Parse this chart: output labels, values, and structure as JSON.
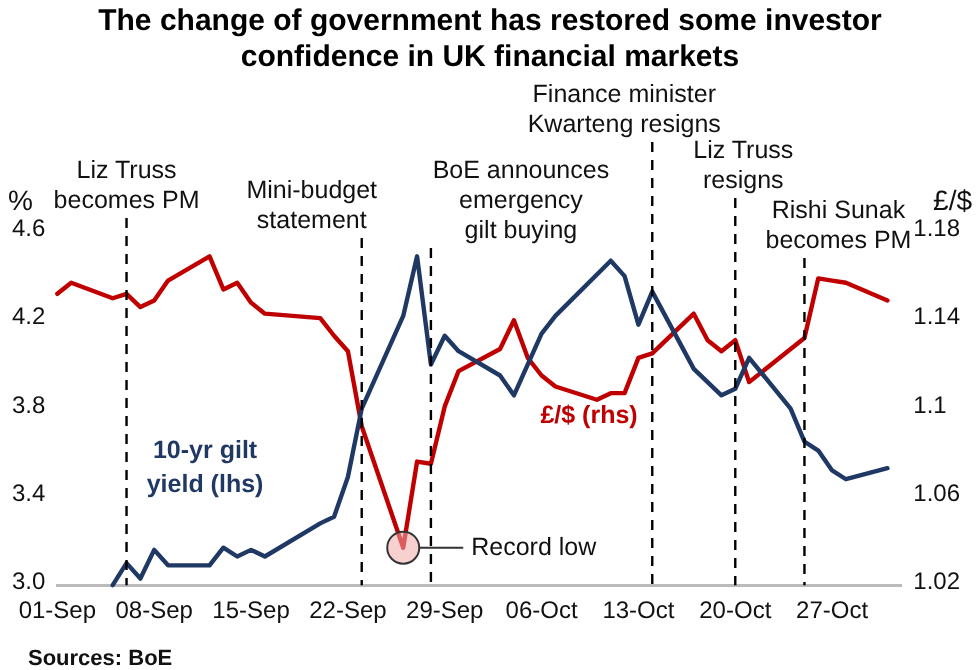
{
  "chart_data": {
    "type": "line",
    "title": "The change of government has restored some investor confidence in UK financial markets",
    "ylabel": "%",
    "y2label": "£/$",
    "xlim": [
      "--09-01",
      "--11-01"
    ],
    "xticks": [
      {
        "value": "--09-01",
        "label": "01-Sep"
      },
      {
        "value": "--09-08",
        "label": "08-Sep"
      },
      {
        "value": "--09-15",
        "label": "15-Sep"
      },
      {
        "value": "--09-22",
        "label": "22-Sep"
      },
      {
        "value": "--09-29",
        "label": "29-Sep"
      },
      {
        "value": "--10-06",
        "label": "06-Oct"
      },
      {
        "value": "--10-13",
        "label": "13-Oct"
      },
      {
        "value": "--10-20",
        "label": "20-Oct"
      },
      {
        "value": "--10-27",
        "label": "27-Oct"
      }
    ],
    "ylim": [
      3.0,
      4.6
    ],
    "yticks": [
      {
        "value": 3.0,
        "label": "3.0"
      },
      3.4,
      3.8,
      4.2,
      4.6
    ],
    "y2lim": [
      1.02,
      1.18
    ],
    "y2ticks": [
      1.02,
      1.06,
      1.1,
      1.14,
      1.18
    ],
    "series": [
      {
        "name": "10-yr gilt yield (lhs)",
        "color": "#1f3864",
        "x": [
          "--09-05",
          "--09-06",
          "--09-07",
          "--09-08",
          "--09-09",
          "--09-12",
          "--09-13",
          "--09-14",
          "--09-15",
          "--09-16",
          "--09-20",
          "--09-21",
          "--09-22",
          "--09-23",
          "--09-26",
          "--09-27",
          "--09-28",
          "--09-29",
          "--09-30",
          "--10-03",
          "--10-04",
          "--10-06",
          "--10-07",
          "--10-11",
          "--10-12",
          "--10-13",
          "--10-14",
          "--10-17",
          "--10-18",
          "--10-19",
          "--10-20",
          "--10-21",
          "--10-24",
          "--10-25",
          "--10-26",
          "--10-27",
          "--10-28",
          "--10-31"
        ],
        "values": [
          3.0,
          3.1,
          3.03,
          3.16,
          3.09,
          3.09,
          3.17,
          3.13,
          3.16,
          3.13,
          3.28,
          3.31,
          3.49,
          3.8,
          4.22,
          4.49,
          4.0,
          4.13,
          4.06,
          3.95,
          3.86,
          4.14,
          4.22,
          4.47,
          4.4,
          4.18,
          4.33,
          3.98,
          3.92,
          3.86,
          3.89,
          4.03,
          3.8,
          3.65,
          3.61,
          3.52,
          3.48,
          3.53
        ]
      },
      {
        "name": "£/$ (rhs)",
        "color": "#c00000",
        "axis": "y2",
        "x": [
          "--09-01",
          "--09-02",
          "--09-05",
          "--09-06",
          "--09-07",
          "--09-08",
          "--09-09",
          "--09-12",
          "--09-13",
          "--09-14",
          "--09-15",
          "--09-16",
          "--09-20",
          "--09-21",
          "--09-22",
          "--09-23",
          "--09-26",
          "--09-27",
          "--09-28",
          "--09-29",
          "--09-30",
          "--10-03",
          "--10-04",
          "--10-05",
          "--10-06",
          "--10-07",
          "--10-10",
          "--10-11",
          "--10-12",
          "--10-13",
          "--10-14",
          "--10-17",
          "--10-18",
          "--10-19",
          "--10-20",
          "--10-21",
          "--10-25",
          "--10-26",
          "--10-27",
          "--10-28",
          "--10-31"
        ],
        "values": [
          1.152,
          1.157,
          1.15,
          1.152,
          1.146,
          1.149,
          1.158,
          1.169,
          1.154,
          1.157,
          1.148,
          1.143,
          1.141,
          1.133,
          1.126,
          1.092,
          1.037,
          1.076,
          1.075,
          1.101,
          1.117,
          1.127,
          1.14,
          1.123,
          1.115,
          1.11,
          1.104,
          1.107,
          1.107,
          1.123,
          1.125,
          1.143,
          1.131,
          1.126,
          1.131,
          1.112,
          1.132,
          1.159,
          1.158,
          1.157,
          1.149
        ]
      }
    ],
    "ref_lines": [
      {
        "axis": "x",
        "value": "--09-06",
        "label": "Liz Truss\nbecomes PM",
        "color": "#000000",
        "line_style": "dashed"
      },
      {
        "axis": "x",
        "value": "--09-23",
        "label": "Mini-budget\nstatement",
        "color": "#000000",
        "line_style": "dashed"
      },
      {
        "axis": "x",
        "value": "--09-28",
        "label": "BoE announces\nemergency\ngilt buying",
        "color": "#000000",
        "line_style": "dashed"
      },
      {
        "axis": "x",
        "value": "--10-14",
        "label": "Finance minister\nKwarteng resigns",
        "color": "#000000",
        "line_style": "dashed"
      },
      {
        "axis": "x",
        "value": "--10-20",
        "label": "Liz Truss\nresigns",
        "color": "#000000",
        "line_style": "dashed"
      },
      {
        "axis": "x",
        "value": "--10-25",
        "label": "Rishi Sunak\nbecomes PM",
        "color": "#000000",
        "line_style": "dashed"
      }
    ],
    "annotations": [
      {
        "text": "Record low",
        "x": "--09-26",
        "y": 3.17
      },
      "Sources: BoE"
    ]
  }
}
